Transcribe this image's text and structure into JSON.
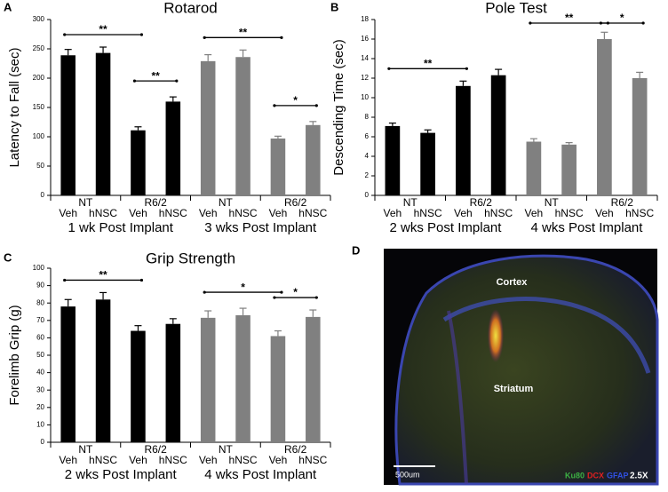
{
  "chart_data": [
    {
      "type": "bar",
      "panel": "A",
      "title": "Rotarod",
      "y_label": "Latency to Fall (sec)",
      "categories": [
        "Veh",
        "hNSC",
        "Veh",
        "hNSC",
        "Veh",
        "hNSC",
        "Veh",
        "hNSC"
      ],
      "groups": [
        "NT",
        "R6/2",
        "NT",
        "R6/2"
      ],
      "periods": [
        "1 wk Post Implant",
        "3 wks Post Implant"
      ],
      "values": [
        239,
        243,
        111,
        160,
        229,
        236,
        97,
        120
      ],
      "errors": [
        10,
        10,
        6,
        8,
        11,
        12,
        4,
        6
      ],
      "colors": [
        "#000000",
        "#000000",
        "#000000",
        "#000000",
        "#808080",
        "#808080",
        "#808080",
        "#808080"
      ],
      "ylim": [
        0,
        300
      ],
      "yticks": [
        0,
        50,
        100,
        150,
        200,
        250,
        300
      ],
      "significance": [
        {
          "text": "**",
          "bars": [
            0,
            2
          ]
        },
        {
          "text": "**",
          "bars": [
            2,
            3
          ]
        },
        {
          "text": "**",
          "bars": [
            4,
            6
          ]
        },
        {
          "text": "*",
          "bars": [
            6,
            7
          ]
        }
      ]
    },
    {
      "type": "bar",
      "panel": "B",
      "title": "Pole Test",
      "y_label": "Descending Time (sec)",
      "categories": [
        "Veh",
        "hNSC",
        "Veh",
        "hNSC",
        "Veh",
        "hNSC",
        "Veh",
        "hNSC"
      ],
      "groups": [
        "NT",
        "R6/2",
        "NT",
        "R6/2"
      ],
      "periods": [
        "2 wks Post Implant",
        "4 wks Post Implant"
      ],
      "values": [
        7.1,
        6.4,
        11.2,
        12.3,
        5.5,
        5.2,
        16.0,
        12.0
      ],
      "errors": [
        0.3,
        0.3,
        0.5,
        0.6,
        0.3,
        0.2,
        0.7,
        0.6
      ],
      "colors": [
        "#000000",
        "#000000",
        "#000000",
        "#000000",
        "#808080",
        "#808080",
        "#808080",
        "#808080"
      ],
      "ylim": [
        0,
        18
      ],
      "yticks": [
        0,
        2,
        4,
        6,
        8,
        10,
        12,
        14,
        16,
        18
      ],
      "significance": [
        {
          "text": "**",
          "bars": [
            0,
            2
          ]
        },
        {
          "text": "**",
          "bars": [
            4,
            6
          ]
        },
        {
          "text": "*",
          "bars": [
            6,
            7
          ]
        }
      ]
    },
    {
      "type": "bar",
      "panel": "C",
      "title": "Grip Strength",
      "y_label": "Forelimb Grip (g)",
      "categories": [
        "Veh",
        "hNSC",
        "Veh",
        "hNSC",
        "Veh",
        "hNSC",
        "Veh",
        "hNSC"
      ],
      "groups": [
        "NT",
        "R6/2",
        "NT",
        "R6/2"
      ],
      "periods": [
        "2 wks Post Implant",
        "4 wks Post Implant"
      ],
      "values": [
        78,
        82,
        64,
        68,
        71.5,
        73,
        61,
        72
      ],
      "errors": [
        4,
        4,
        3,
        3,
        4,
        4,
        3,
        4
      ],
      "colors": [
        "#000000",
        "#000000",
        "#000000",
        "#000000",
        "#808080",
        "#808080",
        "#808080",
        "#808080"
      ],
      "ylim": [
        0,
        100
      ],
      "yticks": [
        0,
        10,
        20,
        30,
        40,
        50,
        60,
        70,
        80,
        90,
        100
      ],
      "significance": [
        {
          "text": "**",
          "bars": [
            0,
            2
          ]
        },
        {
          "text": "*",
          "bars": [
            4,
            6
          ]
        },
        {
          "text": "*",
          "bars": [
            6,
            7
          ]
        }
      ]
    }
  ],
  "image": {
    "panel": "D",
    "regions": [
      "Cortex",
      "Striatum"
    ],
    "stains": [
      {
        "name": "Ku80",
        "color": "#3cb043"
      },
      {
        "name": "DCX",
        "color": "#e02020"
      },
      {
        "name": "GFAP",
        "color": "#3050e0"
      }
    ],
    "magnification": "2.5X",
    "scale_bar": "500um"
  }
}
